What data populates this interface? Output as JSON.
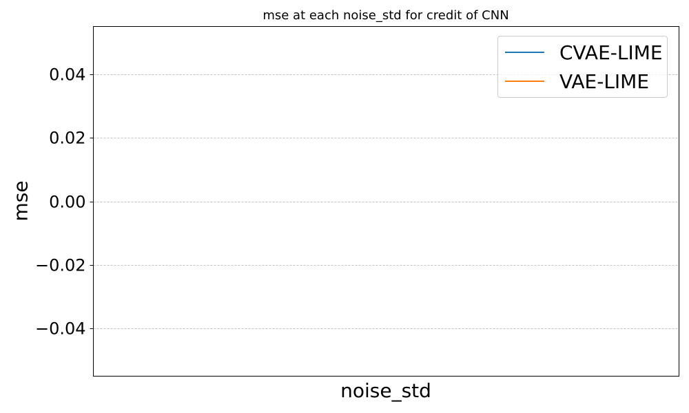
{
  "chart_data": {
    "type": "line",
    "title": "mse at each noise_std for credit of CNN",
    "xlabel": "noise_std",
    "ylabel": "mse",
    "ylim": [
      -0.055,
      0.055
    ],
    "yticks": [
      0.04,
      0.02,
      0.0,
      -0.02,
      -0.04
    ],
    "ytick_labels": [
      "0.04",
      "0.02",
      "0.00",
      "−0.02",
      "−0.04"
    ],
    "grid": "y",
    "legend_position": "top-right",
    "series": [
      {
        "name": "CVAE-LIME",
        "color": "#1f77b4",
        "x": [],
        "y": []
      },
      {
        "name": "VAE-LIME",
        "color": "#ff7f0e",
        "x": [],
        "y": []
      }
    ]
  }
}
